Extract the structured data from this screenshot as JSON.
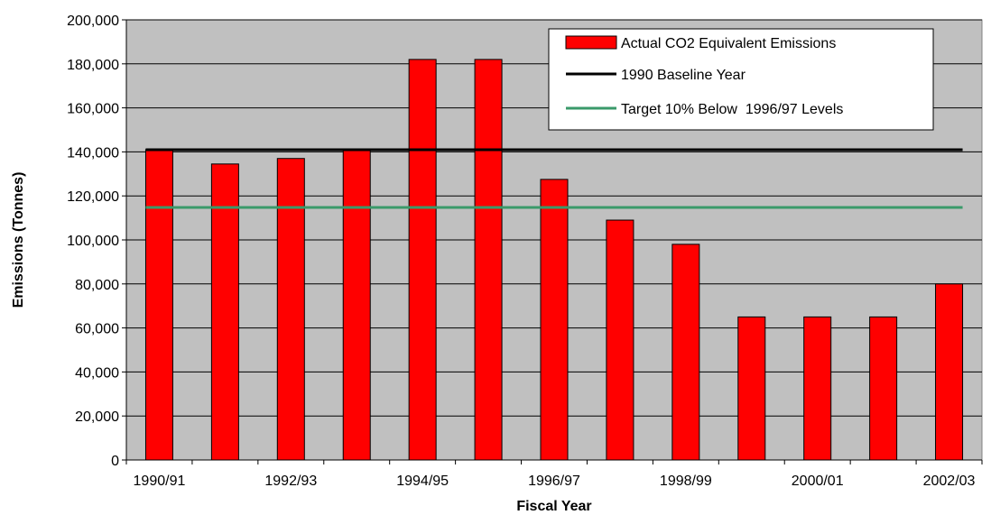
{
  "chart_data": {
    "type": "bar",
    "xlabel": "Fiscal Year",
    "ylabel": "Emissions (Tonnes)",
    "ylim": [
      0,
      200000
    ],
    "ytick_step": 20000,
    "yticks": [
      "0",
      "20,000",
      "40,000",
      "60,000",
      "80,000",
      "100,000",
      "120,000",
      "140,000",
      "160,000",
      "180,000",
      "200,000"
    ],
    "categories": [
      "1990/91",
      "1991/92",
      "1992/93",
      "1993/94",
      "1994/95",
      "1995/96",
      "1996/97",
      "1997/98",
      "1998/99",
      "1999/00",
      "2000/01",
      "2001/02",
      "2002/03"
    ],
    "xtick_labels": [
      "1990/91",
      "",
      "1992/93",
      "",
      "1994/95",
      "",
      "1996/97",
      "",
      "1998/99",
      "",
      "2000/01",
      "",
      "2002/03"
    ],
    "series": [
      {
        "name": "Actual CO2 Equivalent Emissions",
        "kind": "bar",
        "color": "#ff0000",
        "values": [
          141000,
          134500,
          137000,
          141000,
          182000,
          182000,
          127500,
          109000,
          98000,
          65000,
          65000,
          65000,
          80000
        ]
      },
      {
        "name": "1990 Baseline Year",
        "kind": "line",
        "color": "#000000",
        "value": 141000
      },
      {
        "name": "Target 10% Below  1996/97 Levels",
        "kind": "line",
        "color": "#3a9a6a",
        "value": 114750
      }
    ],
    "grid": true,
    "plot_background": "#c0c0c0",
    "legend_position": "top-right"
  }
}
